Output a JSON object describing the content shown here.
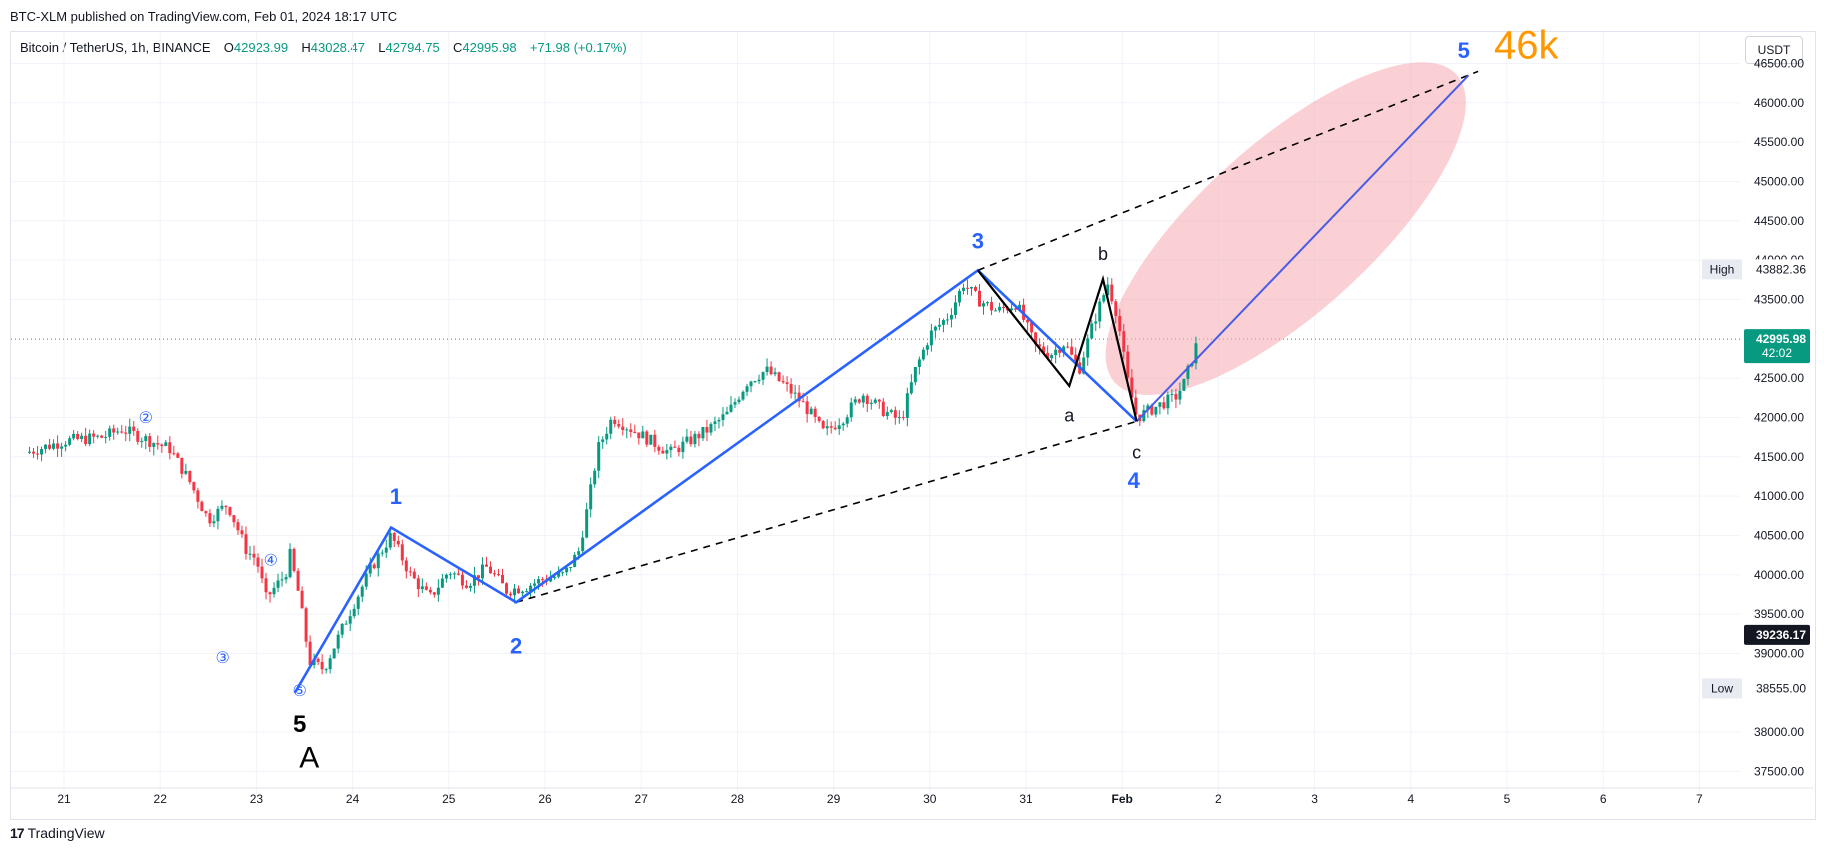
{
  "header": {
    "published": "BTC-XLM published on TradingView.com, Feb 01, 2024 18:17 UTC"
  },
  "legend": {
    "symbol": "Bitcoin / TetherUS, 1h, BINANCE",
    "o_label": "O",
    "o_value": "42923.99",
    "h_label": "H",
    "h_value": "43028.47",
    "l_label": "L",
    "l_value": "42794.75",
    "c_label": "C",
    "c_value": "42995.98",
    "change": "+71.98 (+0.17%)"
  },
  "toolbar": {
    "currency_label": "USDT"
  },
  "price_scale": {
    "ticks": [
      "46500.00",
      "46000.00",
      "45500.00",
      "45000.00",
      "44500.00",
      "44000.00",
      "43500.00",
      "42500.00",
      "42000.00",
      "41500.00",
      "41000.00",
      "40500.00",
      "40000.00",
      "39500.00",
      "39000.00",
      "38000.00",
      "37500.00"
    ],
    "high_label": "High",
    "high_value": "43882.36",
    "low_label": "Low",
    "low_value": "38555.00",
    "last_price": "42995.98",
    "countdown": "42:02",
    "crosshair_price": "39236.17"
  },
  "time_scale": {
    "ticks": [
      "21",
      "22",
      "23",
      "24",
      "25",
      "26",
      "27",
      "28",
      "29",
      "30",
      "31",
      "Feb",
      "2",
      "3",
      "4",
      "5",
      "6",
      "7"
    ]
  },
  "annotations": {
    "wave_labels": [
      "1",
      "2",
      "3",
      "4",
      "5"
    ],
    "abc_labels": [
      "a",
      "b",
      "c"
    ],
    "circled_labels": [
      "②",
      "③",
      "④",
      "⑤"
    ],
    "big_five": "5",
    "big_a": "A",
    "target": "46k"
  },
  "colors": {
    "up": "#089981",
    "down": "#f23645",
    "wave_line": "#2962ff",
    "target_line": "#4a5be8",
    "target_text": "#ff9800",
    "ellipse": "#f7a9b0",
    "grid": "#f0f3fa"
  },
  "chart_data": {
    "type": "candlestick",
    "symbol": "BTCUSDT",
    "interval": "1h",
    "exchange": "BINANCE",
    "ylim": [
      37200,
      46900
    ],
    "x": [
      "21",
      "22",
      "23",
      "24",
      "25",
      "26",
      "27",
      "28",
      "29",
      "30",
      "31",
      "Feb",
      "2",
      "3",
      "4",
      "5",
      "6",
      "7"
    ],
    "path_points": [
      {
        "day": 20.6,
        "price": 41550
      },
      {
        "day": 21.0,
        "price": 41700
      },
      {
        "day": 21.4,
        "price": 41750
      },
      {
        "day": 21.6,
        "price": 41850
      },
      {
        "day": 21.9,
        "price": 41700
      },
      {
        "day": 22.1,
        "price": 41600
      },
      {
        "day": 22.3,
        "price": 41200
      },
      {
        "day": 22.5,
        "price": 40700
      },
      {
        "day": 22.7,
        "price": 40900
      },
      {
        "day": 22.9,
        "price": 40300
      },
      {
        "day": 23.0,
        "price": 40200
      },
      {
        "day": 23.1,
        "price": 39700
      },
      {
        "day": 23.3,
        "price": 40000
      },
      {
        "day": 23.35,
        "price": 40250
      },
      {
        "day": 23.45,
        "price": 39700
      },
      {
        "day": 23.55,
        "price": 38900
      },
      {
        "day": 23.7,
        "price": 38800
      },
      {
        "day": 23.85,
        "price": 39200
      },
      {
        "day": 24.0,
        "price": 39600
      },
      {
        "day": 24.2,
        "price": 40100
      },
      {
        "day": 24.4,
        "price": 40500
      },
      {
        "day": 24.6,
        "price": 40000
      },
      {
        "day": 24.8,
        "price": 39700
      },
      {
        "day": 25.0,
        "price": 40050
      },
      {
        "day": 25.2,
        "price": 39900
      },
      {
        "day": 25.4,
        "price": 40100
      },
      {
        "day": 25.6,
        "price": 39800
      },
      {
        "day": 25.8,
        "price": 39850
      },
      {
        "day": 26.0,
        "price": 39950
      },
      {
        "day": 26.2,
        "price": 40000
      },
      {
        "day": 26.35,
        "price": 40300
      },
      {
        "day": 26.45,
        "price": 40900
      },
      {
        "day": 26.55,
        "price": 41600
      },
      {
        "day": 26.7,
        "price": 42000
      },
      {
        "day": 26.9,
        "price": 41850
      },
      {
        "day": 27.1,
        "price": 41700
      },
      {
        "day": 27.3,
        "price": 41550
      },
      {
        "day": 27.5,
        "price": 41700
      },
      {
        "day": 27.7,
        "price": 41850
      },
      {
        "day": 27.9,
        "price": 42050
      },
      {
        "day": 28.1,
        "price": 42450
      },
      {
        "day": 28.3,
        "price": 42600
      },
      {
        "day": 28.5,
        "price": 42400
      },
      {
        "day": 28.7,
        "price": 42150
      },
      {
        "day": 28.9,
        "price": 41800
      },
      {
        "day": 29.1,
        "price": 42000
      },
      {
        "day": 29.3,
        "price": 42300
      },
      {
        "day": 29.5,
        "price": 42100
      },
      {
        "day": 29.7,
        "price": 41950
      },
      {
        "day": 29.85,
        "price": 42600
      },
      {
        "day": 30.0,
        "price": 43050
      },
      {
        "day": 30.2,
        "price": 43300
      },
      {
        "day": 30.35,
        "price": 43700
      },
      {
        "day": 30.5,
        "price": 43500
      },
      {
        "day": 30.7,
        "price": 43350
      },
      {
        "day": 30.9,
        "price": 43450
      },
      {
        "day": 31.1,
        "price": 42900
      },
      {
        "day": 31.25,
        "price": 42800
      },
      {
        "day": 31.4,
        "price": 42950
      },
      {
        "day": 31.55,
        "price": 42600
      },
      {
        "day": 31.7,
        "price": 43200
      },
      {
        "day": 31.85,
        "price": 43700
      },
      {
        "day": 31.95,
        "price": 43300
      },
      {
        "day": 32.05,
        "price": 42500
      },
      {
        "day": 32.15,
        "price": 42000
      },
      {
        "day": 32.3,
        "price": 42100
      },
      {
        "day": 32.45,
        "price": 42200
      },
      {
        "day": 32.55,
        "price": 42250
      },
      {
        "day": 32.65,
        "price": 42450
      },
      {
        "day": 32.75,
        "price": 42850
      },
      {
        "day": 32.8,
        "price": 43000
      }
    ],
    "wave_path": [
      {
        "day": 23.4,
        "price": 38500
      },
      {
        "day": 24.4,
        "price": 40600
      },
      {
        "day": 25.7,
        "price": 39650
      },
      {
        "day": 30.5,
        "price": 43870
      },
      {
        "day": 32.15,
        "price": 41950
      },
      {
        "day": 35.6,
        "price": 46350
      }
    ],
    "abc_path": [
      {
        "day": 30.5,
        "price": 43870
      },
      {
        "day": 31.45,
        "price": 42400
      },
      {
        "day": 31.8,
        "price": 43760
      },
      {
        "day": 32.15,
        "price": 41950
      }
    ],
    "channel_upper": [
      {
        "day": 30.5,
        "price": 43870
      },
      {
        "day": 35.7,
        "price": 46400
      }
    ],
    "channel_lower": [
      {
        "day": 25.7,
        "price": 39650
      },
      {
        "day": 32.15,
        "price": 41950
      }
    ],
    "ellipse_center": {
      "day": 33.7,
      "price": 44400
    },
    "high": 43882.36,
    "low": 38555.0,
    "last": 42995.98
  }
}
